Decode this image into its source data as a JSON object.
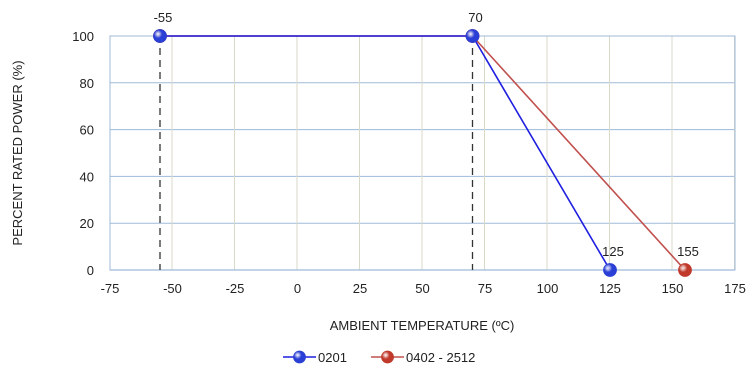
{
  "chart_data": {
    "type": "line",
    "xlabel": "AMBIENT TEMPERATURE (ºC)",
    "ylabel": "PERCENT RATED POWER (%)",
    "xlim": [
      -75,
      175
    ],
    "ylim": [
      0,
      100
    ],
    "x_ticks": [
      -75,
      -50,
      -25,
      0,
      25,
      50,
      75,
      100,
      125,
      150,
      175
    ],
    "x_tick_labels": [
      "-75",
      "-50",
      "-25",
      "0",
      "25",
      "50",
      "75",
      "100",
      "125",
      "150",
      "175"
    ],
    "y_ticks": [
      0,
      20,
      40,
      60,
      80,
      100
    ],
    "y_tick_labels": [
      "0",
      "20",
      "40",
      "60",
      "80",
      "100"
    ],
    "minor_x_gridlines": [
      -50,
      -25,
      0,
      25,
      50,
      75,
      100,
      125,
      150,
      175
    ],
    "grid": true,
    "legend_position": "bottom",
    "series": [
      {
        "name": "0201",
        "color": "#1f1fe0",
        "marker_color": "#2a3fd6",
        "points": [
          {
            "x": -55,
            "y": 100
          },
          {
            "x": 70,
            "y": 100
          },
          {
            "x": 125,
            "y": 0
          }
        ]
      },
      {
        "name": "0402 - 2512",
        "color": "#c0504d",
        "marker_color": "#c0392b",
        "points": [
          {
            "x": -55,
            "y": 100
          },
          {
            "x": 70,
            "y": 100
          },
          {
            "x": 155,
            "y": 0
          }
        ]
      }
    ],
    "annotations": [
      {
        "text": "-55",
        "x": -55,
        "y": 100,
        "placement": "above"
      },
      {
        "text": "70",
        "x": 70,
        "y": 100,
        "placement": "above"
      },
      {
        "text": "125",
        "x": 125,
        "y": 0,
        "placement": "above"
      },
      {
        "text": "155",
        "x": 155,
        "y": 0,
        "placement": "above"
      }
    ],
    "reference_lines": [
      {
        "x": -55,
        "style": "dashed"
      },
      {
        "x": 70,
        "style": "dashed"
      }
    ]
  }
}
